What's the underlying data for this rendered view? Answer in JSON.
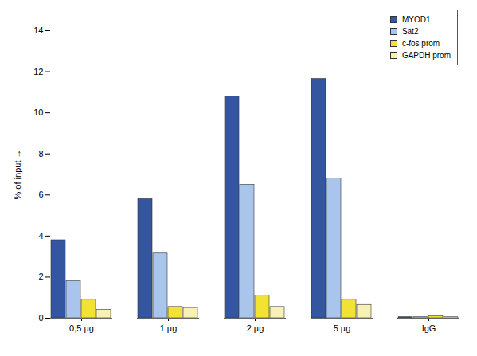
{
  "chart_data": {
    "type": "bar",
    "y_label": "% of input",
    "categories": [
      "0,5 µg",
      "1 µg",
      "2 µg",
      "5 µg",
      "IgG"
    ],
    "series": [
      {
        "name": "MYOD1",
        "color": "#34559f",
        "values": [
          3.8,
          5.8,
          10.8,
          11.65,
          0.05
        ]
      },
      {
        "name": "Sat2",
        "color": "#a9c5ec",
        "values": [
          1.8,
          3.15,
          6.5,
          6.8,
          0.05
        ]
      },
      {
        "name": "c-fos prom",
        "color": "#f1e233",
        "values": [
          0.9,
          0.55,
          1.1,
          0.9,
          0.1
        ]
      },
      {
        "name": "GAPDH prom",
        "color": "#f7f1b4",
        "values": [
          0.4,
          0.5,
          0.55,
          0.65,
          0.05
        ]
      }
    ],
    "ylim": [
      0,
      14
    ],
    "yticks": [
      0,
      2,
      4,
      6,
      8,
      10,
      12,
      14
    ],
    "grid": false,
    "legend": "top-right"
  }
}
